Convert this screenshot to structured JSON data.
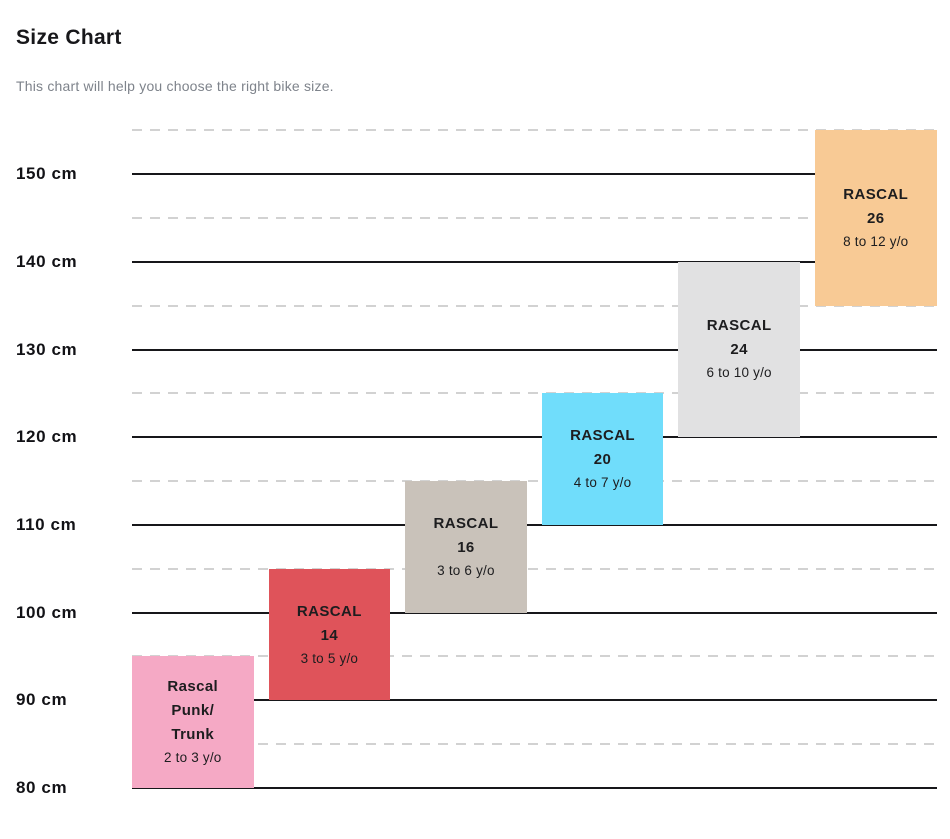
{
  "chart_data": {
    "type": "bar",
    "subtype": "vertical-range-bars",
    "title": "Size Chart",
    "subtitle": "This chart will help you choose the right bike size.",
    "y_unit": "cm",
    "ylim": [
      80,
      155
    ],
    "grid": "horizontal, solid lines every 10 cm with labels, dashed lines every intermediate 5 cm",
    "legend": "none",
    "gridlines": {
      "solid": [
        {
          "cm": 150,
          "label": "150 cm"
        },
        {
          "cm": 140,
          "label": "140 cm"
        },
        {
          "cm": 130,
          "label": "130 cm"
        },
        {
          "cm": 120,
          "label": "120 cm"
        },
        {
          "cm": 110,
          "label": "110 cm"
        },
        {
          "cm": 100,
          "label": "100 cm"
        },
        {
          "cm": 90,
          "label": "90 cm"
        },
        {
          "cm": 80,
          "label": "80 cm"
        }
      ],
      "dashed_cm": [
        155,
        145,
        135,
        125,
        115,
        105,
        95,
        85
      ]
    },
    "series": [
      {
        "id": "rascal-punk-trunk",
        "label_lines": [
          "Rascal",
          "Punk/",
          "Trunk"
        ],
        "age": "2 to 3 y/o",
        "height_range_cm": [
          80,
          95
        ],
        "color": "#f5a9c5"
      },
      {
        "id": "rascal-14",
        "label_lines": [
          "RASCAL",
          "14"
        ],
        "age": "3 to 5 y/o",
        "height_range_cm": [
          90,
          105
        ],
        "color": "#df535a"
      },
      {
        "id": "rascal-16",
        "label_lines": [
          "RASCAL",
          "16"
        ],
        "age": "3 to 6 y/o",
        "height_range_cm": [
          100,
          115
        ],
        "color": "#c9c2ba"
      },
      {
        "id": "rascal-20",
        "label_lines": [
          "RASCAL",
          "20"
        ],
        "age": "4 to 7 y/o",
        "height_range_cm": [
          110,
          125
        ],
        "color": "#70ddfb"
      },
      {
        "id": "rascal-24",
        "label_lines": [
          "RASCAL",
          "24"
        ],
        "age": "6 to 10 y/o",
        "height_range_cm": [
          120,
          140
        ],
        "color": "#e1e1e2"
      },
      {
        "id": "rascal-26",
        "label_lines": [
          "RASCAL",
          "26"
        ],
        "age": "8 to 12 y/o",
        "height_range_cm": [
          135,
          155
        ],
        "color": "#f8ca95"
      }
    ]
  }
}
